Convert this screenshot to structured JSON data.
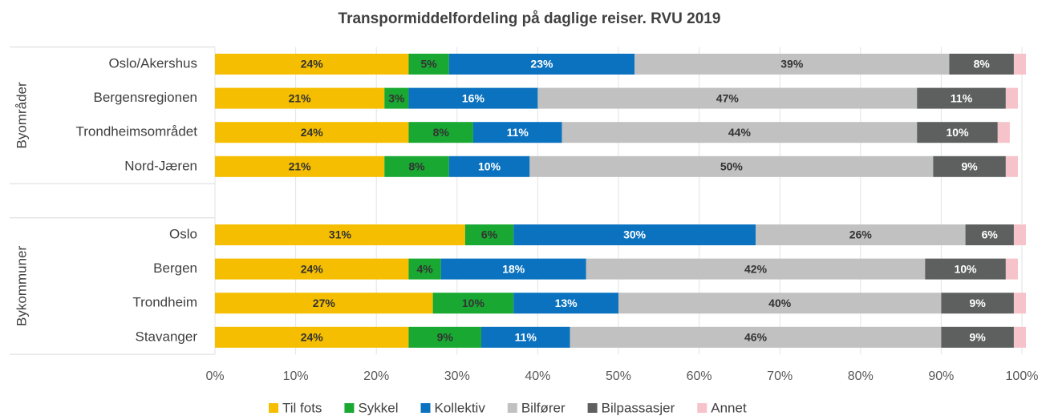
{
  "chart_data": {
    "type": "stacked_bar_horizontal",
    "title": "Transpormiddelfordeling på daglige reiser. RVU 2019",
    "groups": [
      {
        "label": "Byområder",
        "categories": [
          "Oslo/Akershus",
          "Bergensregionen",
          "Trondheimsområdet",
          "Nord-Jæren"
        ]
      },
      {
        "label": "Bykommuner",
        "categories": [
          "Oslo",
          "Bergen",
          "Trondheim",
          "Stavanger"
        ]
      }
    ],
    "series": [
      {
        "name": "Til fots",
        "color": "#f5be00",
        "label_color": "#333333",
        "values": [
          24,
          21,
          24,
          21,
          31,
          24,
          27,
          24
        ],
        "value_labels": [
          "24%",
          "21%",
          "24%",
          "21%",
          "31%",
          "24%",
          "27%",
          "24%"
        ]
      },
      {
        "name": "Sykkel",
        "color": "#19a832",
        "label_color": "#333333",
        "values": [
          5,
          3,
          8,
          8,
          6,
          4,
          10,
          9
        ],
        "value_labels": [
          "5%",
          "3%",
          "8%",
          "8%",
          "6%",
          "4%",
          "10%",
          "9%"
        ]
      },
      {
        "name": "Kollektiv",
        "color": "#0b72bf",
        "label_color": "#ffffff",
        "values": [
          23,
          16,
          11,
          10,
          30,
          18,
          13,
          11
        ],
        "value_labels": [
          "23%",
          "16%",
          "11%",
          "10%",
          "30%",
          "18%",
          "13%",
          "11%"
        ]
      },
      {
        "name": "Bilfører",
        "color": "#c0c1c0",
        "label_color": "#333333",
        "values": [
          39,
          47,
          44,
          50,
          26,
          42,
          40,
          46
        ],
        "value_labels": [
          "39%",
          "47%",
          "44%",
          "50%",
          "26%",
          "42%",
          "40%",
          "46%"
        ]
      },
      {
        "name": "Bilpassasjer",
        "color": "#5e605f",
        "label_color": "#ffffff",
        "values": [
          8,
          11,
          10,
          9,
          6,
          10,
          9,
          9
        ],
        "value_labels": [
          "8%",
          "11%",
          "10%",
          "9%",
          "6%",
          "10%",
          "9%",
          "9%"
        ]
      },
      {
        "name": "Annet",
        "color": "#f7c3ca",
        "values": [
          1.5,
          1.5,
          1.5,
          1.5,
          1.5,
          1.5,
          1.5,
          1.5
        ]
      }
    ],
    "xlim": [
      0,
      100
    ],
    "xticks": [
      {
        "value": 0,
        "label": "0%"
      },
      {
        "value": 10,
        "label": "10%"
      },
      {
        "value": 20,
        "label": "20%"
      },
      {
        "value": 30,
        "label": "30%"
      },
      {
        "value": 40,
        "label": "40%"
      },
      {
        "value": 50,
        "label": "50%"
      },
      {
        "value": 60,
        "label": "60%"
      },
      {
        "value": 70,
        "label": "70%"
      },
      {
        "value": 80,
        "label": "80%"
      },
      {
        "value": 90,
        "label": "90%"
      },
      {
        "value": 100,
        "label": "100%"
      }
    ],
    "grid": true,
    "legend": "bottom"
  }
}
